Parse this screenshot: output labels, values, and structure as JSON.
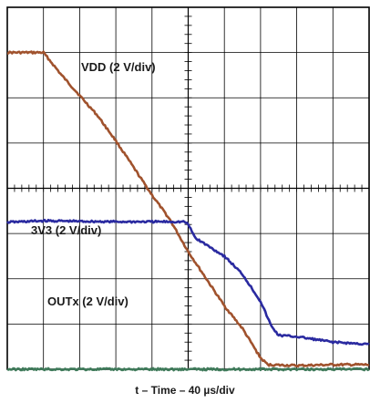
{
  "chart_data": {
    "type": "line",
    "title": "",
    "xlabel": "t – Time – 40 µs/div",
    "ylabel": "",
    "x_divisions": 10,
    "y_divisions": 8,
    "xlim": [
      0,
      10
    ],
    "ylim": [
      0,
      8
    ],
    "grid": true,
    "background": "#ffffff",
    "grid_color": "#000000",
    "series": [
      {
        "name": "VDD (2 V/div)",
        "color": "#a0522d",
        "x": [
          0,
          1.0,
          1.1,
          1.5,
          2.0,
          2.5,
          3.0,
          3.5,
          4.0,
          4.5,
          5.0,
          5.5,
          6.0,
          6.5,
          7.0,
          7.2,
          8.0,
          9.0,
          10.0
        ],
        "y": [
          7.0,
          7.0,
          6.9,
          6.5,
          6.05,
          5.6,
          5.05,
          4.45,
          3.85,
          3.3,
          2.6,
          2.0,
          1.4,
          0.9,
          0.25,
          0.1,
          0.08,
          0.1,
          0.1
        ]
      },
      {
        "name": "3V3 (2 V/div)",
        "color": "#2a2aa0",
        "x": [
          0,
          1,
          2,
          3,
          4,
          4.9,
          5.0,
          5.2,
          6.0,
          6.5,
          7.0,
          7.3,
          7.5,
          8.0,
          9.0,
          10.0
        ],
        "y": [
          3.25,
          3.28,
          3.27,
          3.26,
          3.26,
          3.26,
          3.2,
          2.9,
          2.5,
          2.1,
          1.5,
          0.95,
          0.75,
          0.72,
          0.6,
          0.55
        ]
      },
      {
        "name": "OUTx (2 V/div)",
        "color": "#3f7a5a",
        "x": [
          0,
          2,
          4,
          6,
          7,
          8,
          10
        ],
        "y": [
          0.0,
          0.0,
          0.0,
          0.0,
          0.0,
          0.0,
          0.0
        ]
      }
    ]
  }
}
